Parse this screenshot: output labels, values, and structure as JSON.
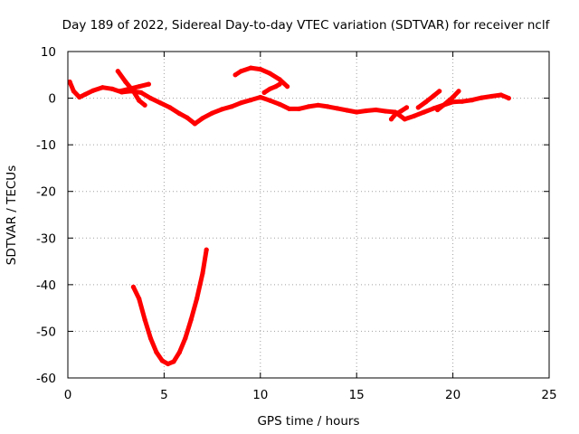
{
  "chart_data": {
    "type": "line",
    "title": "Day 189 of 2022, Sidereal Day-to-day VTEC variation (SDTVAR) for receiver nclf",
    "xlabel": "GPS time / hours",
    "ylabel": "SDTVAR / TECUs",
    "xlim": [
      0,
      25
    ],
    "ylim": [
      -60,
      10
    ],
    "xticks": [
      0,
      5,
      10,
      15,
      20,
      25
    ],
    "yticks": [
      -60,
      -50,
      -40,
      -30,
      -20,
      -10,
      0,
      10
    ],
    "grid": true,
    "legend": "none",
    "series": [
      {
        "name": "main-band",
        "color": "#ff0000",
        "points": [
          [
            0.1,
            3.5
          ],
          [
            0.3,
            1.5
          ],
          [
            0.6,
            0.2
          ],
          [
            0.9,
            0.8
          ],
          [
            1.3,
            1.6
          ],
          [
            1.8,
            2.3
          ],
          [
            2.3,
            2.0
          ],
          [
            2.8,
            1.3
          ],
          [
            3.3,
            1.5
          ],
          [
            3.8,
            1.2
          ],
          [
            4.3,
            0.0
          ],
          [
            4.8,
            -1.0
          ],
          [
            5.3,
            -2.0
          ],
          [
            5.8,
            -3.3
          ],
          [
            6.2,
            -4.2
          ],
          [
            6.6,
            -5.5
          ],
          [
            7.0,
            -4.3
          ],
          [
            7.5,
            -3.2
          ],
          [
            8.0,
            -2.4
          ],
          [
            8.5,
            -1.8
          ],
          [
            9.0,
            -1.0
          ],
          [
            9.5,
            -0.4
          ],
          [
            10.0,
            0.2
          ],
          [
            10.5,
            -0.5
          ],
          [
            11.0,
            -1.3
          ],
          [
            11.5,
            -2.3
          ],
          [
            12.0,
            -2.3
          ],
          [
            12.5,
            -1.8
          ],
          [
            13.0,
            -1.5
          ],
          [
            13.5,
            -1.8
          ],
          [
            14.0,
            -2.2
          ],
          [
            14.5,
            -2.6
          ],
          [
            15.0,
            -3.0
          ],
          [
            15.5,
            -2.7
          ],
          [
            16.0,
            -2.5
          ],
          [
            16.5,
            -2.8
          ],
          [
            17.0,
            -3.0
          ],
          [
            17.5,
            -4.5
          ],
          [
            18.0,
            -3.8
          ],
          [
            18.5,
            -3.0
          ],
          [
            19.0,
            -2.2
          ],
          [
            19.5,
            -1.5
          ],
          [
            20.0,
            -0.8
          ],
          [
            20.5,
            -0.7
          ],
          [
            21.0,
            -0.4
          ],
          [
            21.5,
            0.1
          ],
          [
            22.0,
            0.4
          ],
          [
            22.5,
            0.7
          ],
          [
            22.9,
            0.0
          ]
        ]
      },
      {
        "name": "upper-arc-early",
        "color": "#ff0000",
        "points": [
          [
            2.6,
            5.8
          ],
          [
            3.0,
            3.5
          ],
          [
            3.4,
            1.5
          ],
          [
            3.7,
            -0.5
          ],
          [
            4.0,
            -1.5
          ]
        ]
      },
      {
        "name": "upper-arc-early-2",
        "color": "#ff0000",
        "points": [
          [
            2.7,
            1.5
          ],
          [
            3.2,
            2.0
          ],
          [
            3.7,
            2.5
          ],
          [
            4.2,
            3.0
          ]
        ]
      },
      {
        "name": "upper-arc-mid",
        "color": "#ff0000",
        "points": [
          [
            8.7,
            5.0
          ],
          [
            9.0,
            5.8
          ],
          [
            9.5,
            6.5
          ],
          [
            10.0,
            6.2
          ],
          [
            10.5,
            5.3
          ],
          [
            11.0,
            4.0
          ],
          [
            11.4,
            2.5
          ]
        ]
      },
      {
        "name": "upper-arc-mid-2",
        "color": "#ff0000",
        "points": [
          [
            10.2,
            1.2
          ],
          [
            10.5,
            2.0
          ],
          [
            10.8,
            2.5
          ],
          [
            11.0,
            3.0
          ]
        ]
      },
      {
        "name": "late-rise-1",
        "color": "#ff0000",
        "points": [
          [
            18.2,
            -2.0
          ],
          [
            18.6,
            -0.8
          ],
          [
            19.0,
            0.5
          ],
          [
            19.3,
            1.5
          ]
        ]
      },
      {
        "name": "late-rise-2",
        "color": "#ff0000",
        "points": [
          [
            19.2,
            -2.5
          ],
          [
            19.6,
            -1.2
          ],
          [
            20.0,
            0.2
          ],
          [
            20.3,
            1.5
          ]
        ]
      },
      {
        "name": "late-rise-3",
        "color": "#ff0000",
        "points": [
          [
            16.8,
            -4.5
          ],
          [
            17.0,
            -3.5
          ],
          [
            17.3,
            -2.8
          ],
          [
            17.6,
            -2.0
          ]
        ]
      },
      {
        "name": "deep-dip",
        "color": "#ff0000",
        "points": [
          [
            3.4,
            -40.5
          ],
          [
            3.7,
            -43.0
          ],
          [
            4.0,
            -47.5
          ],
          [
            4.3,
            -51.5
          ],
          [
            4.6,
            -54.5
          ],
          [
            4.9,
            -56.3
          ],
          [
            5.2,
            -57.0
          ],
          [
            5.5,
            -56.5
          ],
          [
            5.8,
            -54.5
          ],
          [
            6.1,
            -51.5
          ],
          [
            6.4,
            -47.5
          ],
          [
            6.7,
            -43.0
          ],
          [
            7.0,
            -37.5
          ],
          [
            7.2,
            -32.5
          ]
        ]
      }
    ]
  }
}
